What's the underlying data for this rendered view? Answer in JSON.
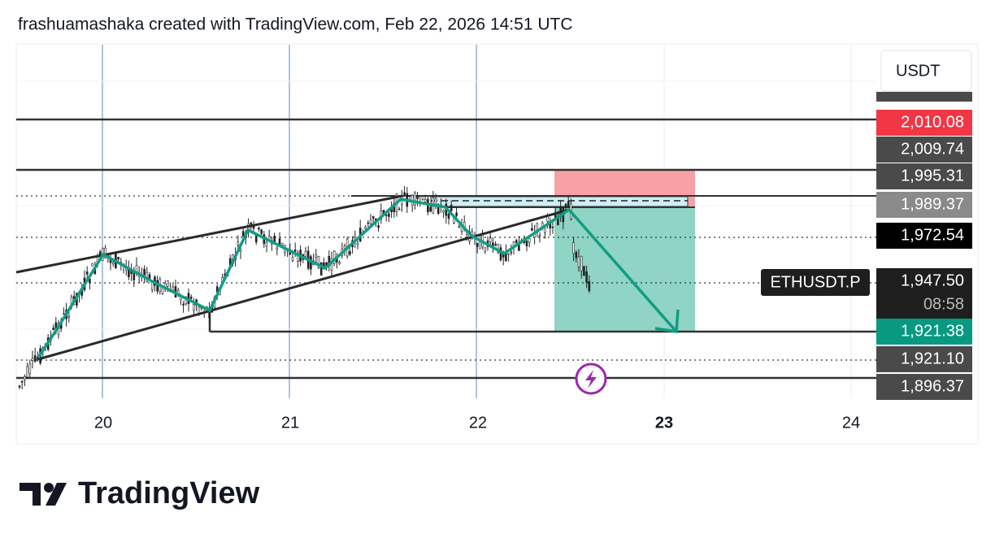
{
  "header": {
    "title": "frashuamashaka created with TradingView.com, Feb 22, 2026 14:51 UTC"
  },
  "currency": "USDT",
  "price_labels": [
    "2,010.08",
    "2,009.74",
    "1,995.31",
    "1,989.37",
    "1,972.54",
    "1,947.50",
    "1,921.38",
    "1,921.10",
    "1,896.37"
  ],
  "symbol": "ETHUSDT.P",
  "countdown": "08:58",
  "time_labels": [
    "20",
    "21",
    "22",
    "23",
    "24"
  ],
  "brand": "TradingView"
}
